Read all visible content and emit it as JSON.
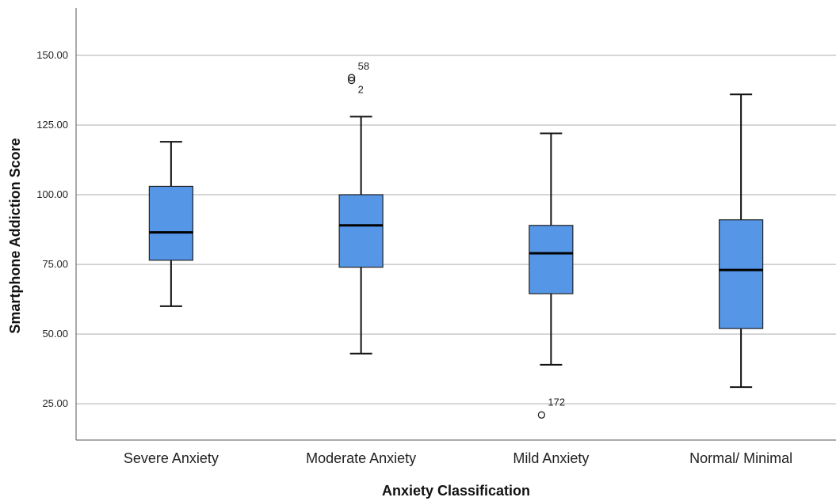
{
  "chart_data": {
    "type": "boxplot",
    "xlabel": "Anxiety Classification",
    "ylabel": "Smartphone Addiction Score",
    "ylim": [
      12,
      167
    ],
    "yticks": [
      "25.00",
      "50.00",
      "75.00",
      "100.00",
      "125.00",
      "150.00"
    ],
    "ytick_values": [
      25,
      50,
      75,
      100,
      125,
      150
    ],
    "grid": true,
    "box_color": "#5596e6",
    "categories": [
      "Severe Anxiety",
      "Moderate Anxiety",
      "Mild Anxiety",
      "Normal/ Minimal"
    ],
    "boxes": [
      {
        "whisker_low": 60,
        "q1": 76.5,
        "median": 86.5,
        "q3": 103,
        "whisker_high": 119,
        "outliers": []
      },
      {
        "whisker_low": 43,
        "q1": 74,
        "median": 89,
        "q3": 100,
        "whisker_high": 128,
        "outliers": [
          {
            "value": 142,
            "label": "58"
          },
          {
            "value": 141,
            "label": "2"
          }
        ]
      },
      {
        "whisker_low": 39,
        "q1": 64.5,
        "median": 79,
        "q3": 89,
        "whisker_high": 122,
        "outliers": [
          {
            "value": 21,
            "label": "172"
          }
        ]
      },
      {
        "whisker_low": 31,
        "q1": 52,
        "median": 73,
        "q3": 91,
        "whisker_high": 136,
        "outliers": []
      }
    ]
  }
}
